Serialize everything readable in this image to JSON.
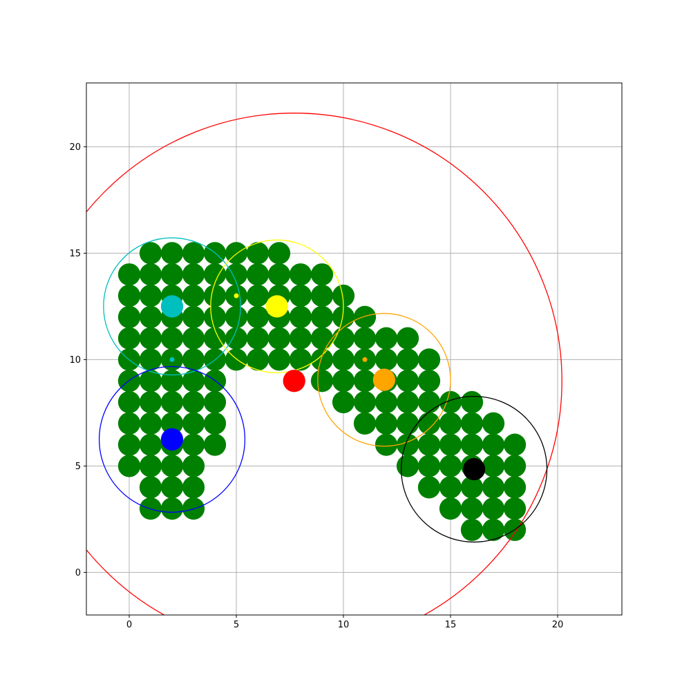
{
  "chart_data": {
    "type": "scatter",
    "title": "",
    "xlabel": "",
    "ylabel": "",
    "xlim": [
      -2,
      23
    ],
    "ylim": [
      -2,
      23
    ],
    "xticks": [
      0,
      5,
      10,
      15,
      20
    ],
    "yticks": [
      0,
      5,
      10,
      15,
      20
    ],
    "grid": true,
    "point_color": "#008000",
    "points": [
      [
        1,
        15
      ],
      [
        2,
        15
      ],
      [
        3,
        15
      ],
      [
        4,
        15
      ],
      [
        5,
        15
      ],
      [
        6,
        15
      ],
      [
        7,
        15
      ],
      [
        0,
        14
      ],
      [
        1,
        14
      ],
      [
        2,
        14
      ],
      [
        3,
        14
      ],
      [
        4,
        14
      ],
      [
        5,
        14
      ],
      [
        6,
        14
      ],
      [
        7,
        14
      ],
      [
        8,
        14
      ],
      [
        9,
        14
      ],
      [
        0,
        13
      ],
      [
        1,
        13
      ],
      [
        2,
        13
      ],
      [
        3,
        13
      ],
      [
        4,
        13
      ],
      [
        5,
        13
      ],
      [
        6,
        13
      ],
      [
        7,
        13
      ],
      [
        8,
        13
      ],
      [
        9,
        13
      ],
      [
        10,
        13
      ],
      [
        0,
        12
      ],
      [
        1,
        12
      ],
      [
        2,
        12
      ],
      [
        3,
        12
      ],
      [
        4,
        12
      ],
      [
        5,
        12
      ],
      [
        6,
        12
      ],
      [
        7,
        12
      ],
      [
        8,
        12
      ],
      [
        9,
        12
      ],
      [
        10,
        12
      ],
      [
        11,
        12
      ],
      [
        0,
        11
      ],
      [
        1,
        11
      ],
      [
        2,
        11
      ],
      [
        3,
        11
      ],
      [
        4,
        11
      ],
      [
        5,
        11
      ],
      [
        6,
        11
      ],
      [
        7,
        11
      ],
      [
        8,
        11
      ],
      [
        9,
        11
      ],
      [
        10,
        11
      ],
      [
        11,
        11
      ],
      [
        12,
        11
      ],
      [
        13,
        11
      ],
      [
        0,
        10
      ],
      [
        1,
        10
      ],
      [
        2,
        10
      ],
      [
        3,
        10
      ],
      [
        4,
        10
      ],
      [
        5,
        10
      ],
      [
        6,
        10
      ],
      [
        7,
        10
      ],
      [
        8,
        10
      ],
      [
        9,
        10
      ],
      [
        10,
        10
      ],
      [
        11,
        10
      ],
      [
        12,
        10
      ],
      [
        13,
        10
      ],
      [
        14,
        10
      ],
      [
        0,
        9
      ],
      [
        1,
        9
      ],
      [
        2,
        9
      ],
      [
        3,
        9
      ],
      [
        4,
        9
      ],
      [
        9,
        9
      ],
      [
        10,
        9
      ],
      [
        11,
        9
      ],
      [
        12,
        9
      ],
      [
        13,
        9
      ],
      [
        14,
        9
      ],
      [
        0,
        8
      ],
      [
        1,
        8
      ],
      [
        2,
        8
      ],
      [
        3,
        8
      ],
      [
        4,
        8
      ],
      [
        10,
        8
      ],
      [
        11,
        8
      ],
      [
        12,
        8
      ],
      [
        13,
        8
      ],
      [
        14,
        8
      ],
      [
        15,
        8
      ],
      [
        16,
        8
      ],
      [
        0,
        7
      ],
      [
        1,
        7
      ],
      [
        2,
        7
      ],
      [
        3,
        7
      ],
      [
        4,
        7
      ],
      [
        11,
        7
      ],
      [
        12,
        7
      ],
      [
        13,
        7
      ],
      [
        14,
        7
      ],
      [
        15,
        7
      ],
      [
        16,
        7
      ],
      [
        17,
        7
      ],
      [
        0,
        6
      ],
      [
        1,
        6
      ],
      [
        2,
        6
      ],
      [
        3,
        6
      ],
      [
        4,
        6
      ],
      [
        12,
        6
      ],
      [
        13,
        6
      ],
      [
        14,
        6
      ],
      [
        15,
        6
      ],
      [
        16,
        6
      ],
      [
        17,
        6
      ],
      [
        18,
        6
      ],
      [
        0,
        5
      ],
      [
        1,
        5
      ],
      [
        2,
        5
      ],
      [
        3,
        5
      ],
      [
        13,
        5
      ],
      [
        14,
        5
      ],
      [
        15,
        5
      ],
      [
        16,
        5
      ],
      [
        17,
        5
      ],
      [
        18,
        5
      ],
      [
        1,
        4
      ],
      [
        2,
        4
      ],
      [
        3,
        4
      ],
      [
        14,
        4
      ],
      [
        15,
        4
      ],
      [
        16,
        4
      ],
      [
        17,
        4
      ],
      [
        18,
        4
      ],
      [
        1,
        3
      ],
      [
        2,
        3
      ],
      [
        3,
        3
      ],
      [
        15,
        3
      ],
      [
        16,
        3
      ],
      [
        17,
        3
      ],
      [
        18,
        3
      ],
      [
        16,
        2
      ],
      [
        17,
        2
      ],
      [
        18,
        2
      ]
    ],
    "clusters": [
      {
        "color": "#ff0000",
        "center": [
          7.7,
          9.0
        ],
        "radius": 12.5
      },
      {
        "color": "#00bfbf",
        "center": [
          2.0,
          12.5
        ],
        "radius": 3.2,
        "marker": [
          2.0,
          10.0
        ]
      },
      {
        "color": "#ffff00",
        "center": [
          6.9,
          12.5
        ],
        "radius": 3.1,
        "marker": [
          5.0,
          13.0
        ]
      },
      {
        "color": "#ffa500",
        "center": [
          11.9,
          9.05
        ],
        "radius": 3.1,
        "marker": [
          11.0,
          10.0
        ]
      },
      {
        "color": "#0000ff",
        "center": [
          2.0,
          6.25
        ],
        "radius": 3.4
      },
      {
        "color": "#000000",
        "center": [
          16.1,
          4.85
        ],
        "radius": 3.4
      }
    ]
  }
}
